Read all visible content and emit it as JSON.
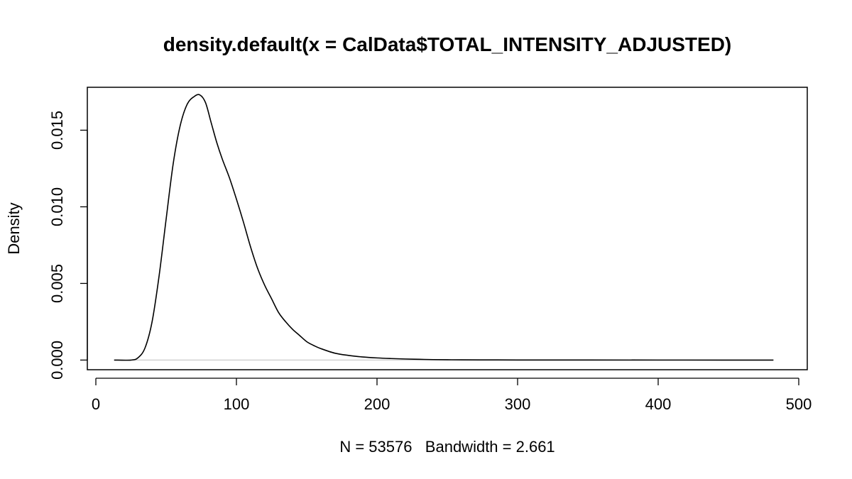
{
  "chart_data": {
    "type": "line",
    "title": "density.default(x = CalData$TOTAL_INTENSITY_ADJUSTED)",
    "xlabel": "N = 53576   Bandwidth = 2.661",
    "ylabel": "Density",
    "xlim": [
      0,
      500
    ],
    "ylim": [
      -0.00063,
      0.0178
    ],
    "x_ticks": [
      0,
      100,
      200,
      300,
      400,
      500
    ],
    "x_tick_labels": [
      "0",
      "100",
      "200",
      "300",
      "400",
      "500"
    ],
    "y_ticks": [
      0,
      0.005,
      0.01,
      0.015
    ],
    "y_tick_labels": [
      "0.000",
      "0.005",
      "0.010",
      "0.015"
    ],
    "zero_reference_line": true,
    "grid": false,
    "legend": "none",
    "colors": {
      "curve": "#000000",
      "zero_line": "#cccccc",
      "axes": "#000000"
    },
    "series": [
      {
        "x": [
          13,
          25,
          30,
          35,
          40,
          45,
          50,
          55,
          60,
          65,
          70,
          74,
          78,
          82,
          86,
          90,
          95,
          100,
          105,
          110,
          115,
          120,
          125,
          130,
          135,
          140,
          145,
          150,
          155,
          160,
          170,
          180,
          190,
          200,
          210,
          220,
          230,
          240,
          250,
          260,
          280,
          300,
          350,
          400,
          450,
          482
        ],
        "y": [
          0.0,
          0.0,
          0.00015,
          0.0008,
          0.0025,
          0.0055,
          0.0092,
          0.0128,
          0.0153,
          0.0167,
          0.0172,
          0.0173,
          0.0168,
          0.0155,
          0.0142,
          0.0131,
          0.0119,
          0.0105,
          0.009,
          0.0074,
          0.006,
          0.0049,
          0.004,
          0.0031,
          0.0025,
          0.002,
          0.0016,
          0.0012,
          0.00095,
          0.00075,
          0.00045,
          0.0003,
          0.0002,
          0.00014,
          0.0001,
          7e-05,
          5e-05,
          3e-05,
          2e-05,
          1.5e-05,
          1e-05,
          5e-06,
          2e-06,
          1e-06,
          0.0,
          0.0
        ]
      }
    ]
  }
}
